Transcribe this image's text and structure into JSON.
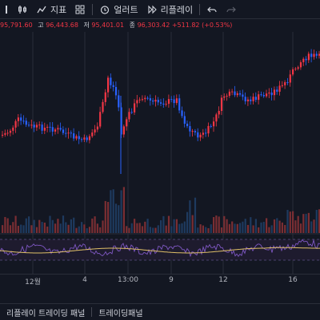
{
  "toolbar": {
    "indicators_label": "지표",
    "alert_label": "얼러트",
    "replay_label": "리플레이"
  },
  "ohlc": {
    "close_partial": "95,791.60",
    "high_label": "고",
    "high": "96,443.68",
    "low_label": "저",
    "low": "95,401.01",
    "close_label": "종",
    "close": "96,303.42",
    "change": "+511.82 (+0.53%)"
  },
  "x_axis": {
    "ticks": [
      "12월",
      "4",
      "13:00",
      "9",
      "12",
      "16"
    ]
  },
  "bottom_tabs": {
    "tab1": "리플레이 트레이딩 패널",
    "tab2": "트레이딩패널"
  },
  "colors": {
    "background": "#131722",
    "up": "#f23645",
    "down": "#2962ff",
    "rsi_line": "#7e57c2",
    "rsi_ma": "#e0c068",
    "grid": "#2a2e39"
  }
}
